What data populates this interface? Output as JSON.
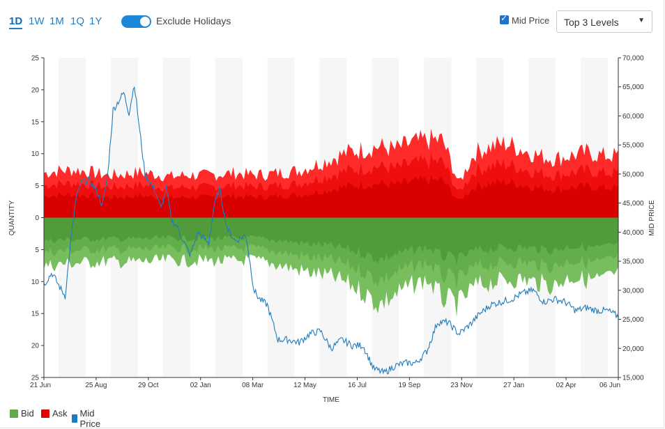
{
  "toolbar": {
    "timeframes": [
      {
        "label": "1D",
        "active": true
      },
      {
        "label": "1W",
        "active": false
      },
      {
        "label": "1M",
        "active": false
      },
      {
        "label": "1Q",
        "active": false
      },
      {
        "label": "1Y",
        "active": false
      }
    ],
    "exclude_holidays_label": "Exclude Holidays",
    "exclude_holidays_on": true,
    "mid_price_label": "Mid Price",
    "mid_price_checked": true,
    "levels_value": "Top 3 Levels"
  },
  "colors": {
    "bid": "#61a94a",
    "ask": "#e00000",
    "mid": "#1f7bbd",
    "accent": "#1e88d8"
  },
  "legend": [
    {
      "label": "Bid",
      "color": "#61a94a"
    },
    {
      "label": "Ask",
      "color": "#e00000"
    },
    {
      "label": "Mid Price",
      "color": "#1f7bbd"
    }
  ],
  "chart_data": {
    "type": "area",
    "xlabel": "TIME",
    "ylabel": "QUANTITY",
    "y2label": "MID PRICE",
    "x_ticks": [
      "21 Jun",
      "25 Aug",
      "29 Oct",
      "02 Jan",
      "08 Mar",
      "12 May",
      "16 Jul",
      "19 Sep",
      "23 Nov",
      "27 Jan",
      "02 Apr",
      "06 Jun"
    ],
    "y_ticks_upper": [
      "25",
      "20",
      "15",
      "10",
      "5",
      "0"
    ],
    "y_ticks_lower": [
      "5",
      "10",
      "15",
      "20",
      "25"
    ],
    "y2_ticks": [
      "70,000",
      "65,000",
      "60,000",
      "55,000",
      "50,000",
      "45,000",
      "40,000",
      "35,000",
      "30,000",
      "25,000",
      "20,000",
      "15,000"
    ],
    "ylim": [
      -25,
      25
    ],
    "y2lim": [
      15000,
      70000
    ],
    "x_index_range": [
      0,
      1080
    ],
    "grid": false,
    "legend_position": "bottom-left",
    "series": [
      {
        "name": "Ask",
        "side": "ask",
        "x": [
          0,
          30,
          60,
          90,
          120,
          150,
          180,
          210,
          240,
          270,
          300,
          330,
          360,
          390,
          420,
          450,
          480,
          510,
          540,
          570,
          600,
          630,
          660,
          690,
          720,
          750,
          780,
          810,
          840,
          870,
          900,
          930,
          960,
          990,
          1020,
          1050,
          1080
        ],
        "values": [
          7.2,
          7.6,
          7.7,
          7.3,
          6.8,
          7.0,
          7.3,
          7.0,
          6.6,
          6.9,
          6.8,
          7.0,
          7.2,
          6.9,
          7.0,
          7.3,
          7.6,
          8.5,
          9.5,
          10.5,
          11.0,
          11.5,
          11.0,
          12.0,
          12.5,
          12.5,
          5.5,
          10.5,
          11.5,
          12.0,
          11.0,
          10.0,
          9.5,
          10.0,
          10.5,
          10.0,
          10.0
        ]
      },
      {
        "name": "Bid",
        "side": "bid",
        "x": [
          0,
          30,
          60,
          90,
          120,
          150,
          180,
          210,
          240,
          270,
          300,
          330,
          360,
          390,
          420,
          450,
          480,
          510,
          540,
          570,
          600,
          630,
          660,
          690,
          720,
          750,
          780,
          810,
          840,
          870,
          900,
          930,
          960,
          990,
          1020,
          1050,
          1080
        ],
        "values": [
          -7.8,
          -7.5,
          -7.3,
          -7.2,
          -7.0,
          -7.2,
          -7.1,
          -7.0,
          -6.8,
          -7.0,
          -6.9,
          -7.0,
          -7.0,
          -6.8,
          -7.2,
          -7.8,
          -8.5,
          -9.0,
          -9.5,
          -10.5,
          -12.0,
          -14.0,
          -12.5,
          -11.0,
          -10.0,
          -13.0,
          -14.0,
          -11.0,
          -10.5,
          -10.0,
          -10.0,
          -10.5,
          -11.0,
          -9.5,
          -10.0,
          -10.0,
          -9.0
        ]
      },
      {
        "name": "Mid Price",
        "axis": "y2",
        "x": [
          0,
          15,
          30,
          40,
          50,
          60,
          70,
          85,
          100,
          110,
          120,
          130,
          140,
          150,
          160,
          170,
          180,
          190,
          200,
          210,
          220,
          230,
          240,
          250,
          260,
          275,
          290,
          310,
          320,
          330,
          345,
          360,
          380,
          395,
          405,
          420,
          440,
          460,
          480,
          500,
          520,
          540,
          560,
          580,
          600,
          620,
          640,
          660,
          680,
          700,
          720,
          740,
          760,
          780,
          800,
          820,
          840,
          860,
          880,
          900,
          920,
          940,
          960,
          980,
          1000,
          1020,
          1040,
          1060,
          1080
        ],
        "values": [
          31000,
          33000,
          30500,
          29000,
          38000,
          45500,
          48500,
          49000,
          47000,
          44500,
          50000,
          61000,
          62500,
          64000,
          60500,
          65500,
          57500,
          50000,
          48500,
          47000,
          44000,
          47500,
          42000,
          41000,
          39000,
          36000,
          40000,
          38000,
          44500,
          47500,
          40500,
          38500,
          39500,
          30000,
          28500,
          27500,
          21500,
          21500,
          21000,
          22500,
          23000,
          20000,
          21500,
          20500,
          20500,
          16500,
          15800,
          17000,
          17500,
          17500,
          19500,
          24500,
          24500,
          22500,
          24000,
          26000,
          27500,
          28000,
          28500,
          29500,
          30000,
          28000,
          28500,
          28000,
          26500,
          27000,
          26500,
          26500,
          25500
        ]
      }
    ]
  }
}
